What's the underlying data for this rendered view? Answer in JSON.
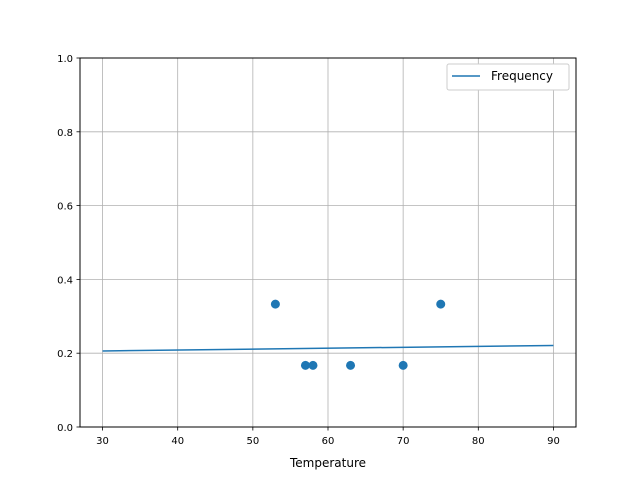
{
  "chart_data": {
    "type": "scatter",
    "title": "",
    "xlabel": "Temperature",
    "ylabel": "",
    "xlim": [
      27,
      93
    ],
    "ylim": [
      0,
      1.0
    ],
    "xticks": [
      30,
      40,
      50,
      60,
      70,
      80,
      90
    ],
    "yticks": [
      0.0,
      0.2,
      0.4,
      0.6,
      0.8,
      1.0
    ],
    "xtick_labels": [
      "30",
      "40",
      "50",
      "60",
      "70",
      "80",
      "90"
    ],
    "ytick_labels": [
      "0.0",
      "0.2",
      "0.4",
      "0.6",
      "0.8",
      "1.0"
    ],
    "grid": true,
    "legend_position": "top-right",
    "color": "#1f77b4",
    "series": [
      {
        "name": "Frequency",
        "type": "line",
        "x": [
          30,
          90
        ],
        "y": [
          0.206,
          0.221
        ]
      },
      {
        "type": "scatter",
        "x": [
          53,
          57,
          58,
          63,
          70,
          75
        ],
        "y": [
          0.333,
          0.167,
          0.167,
          0.167,
          0.167,
          0.333
        ]
      }
    ]
  }
}
